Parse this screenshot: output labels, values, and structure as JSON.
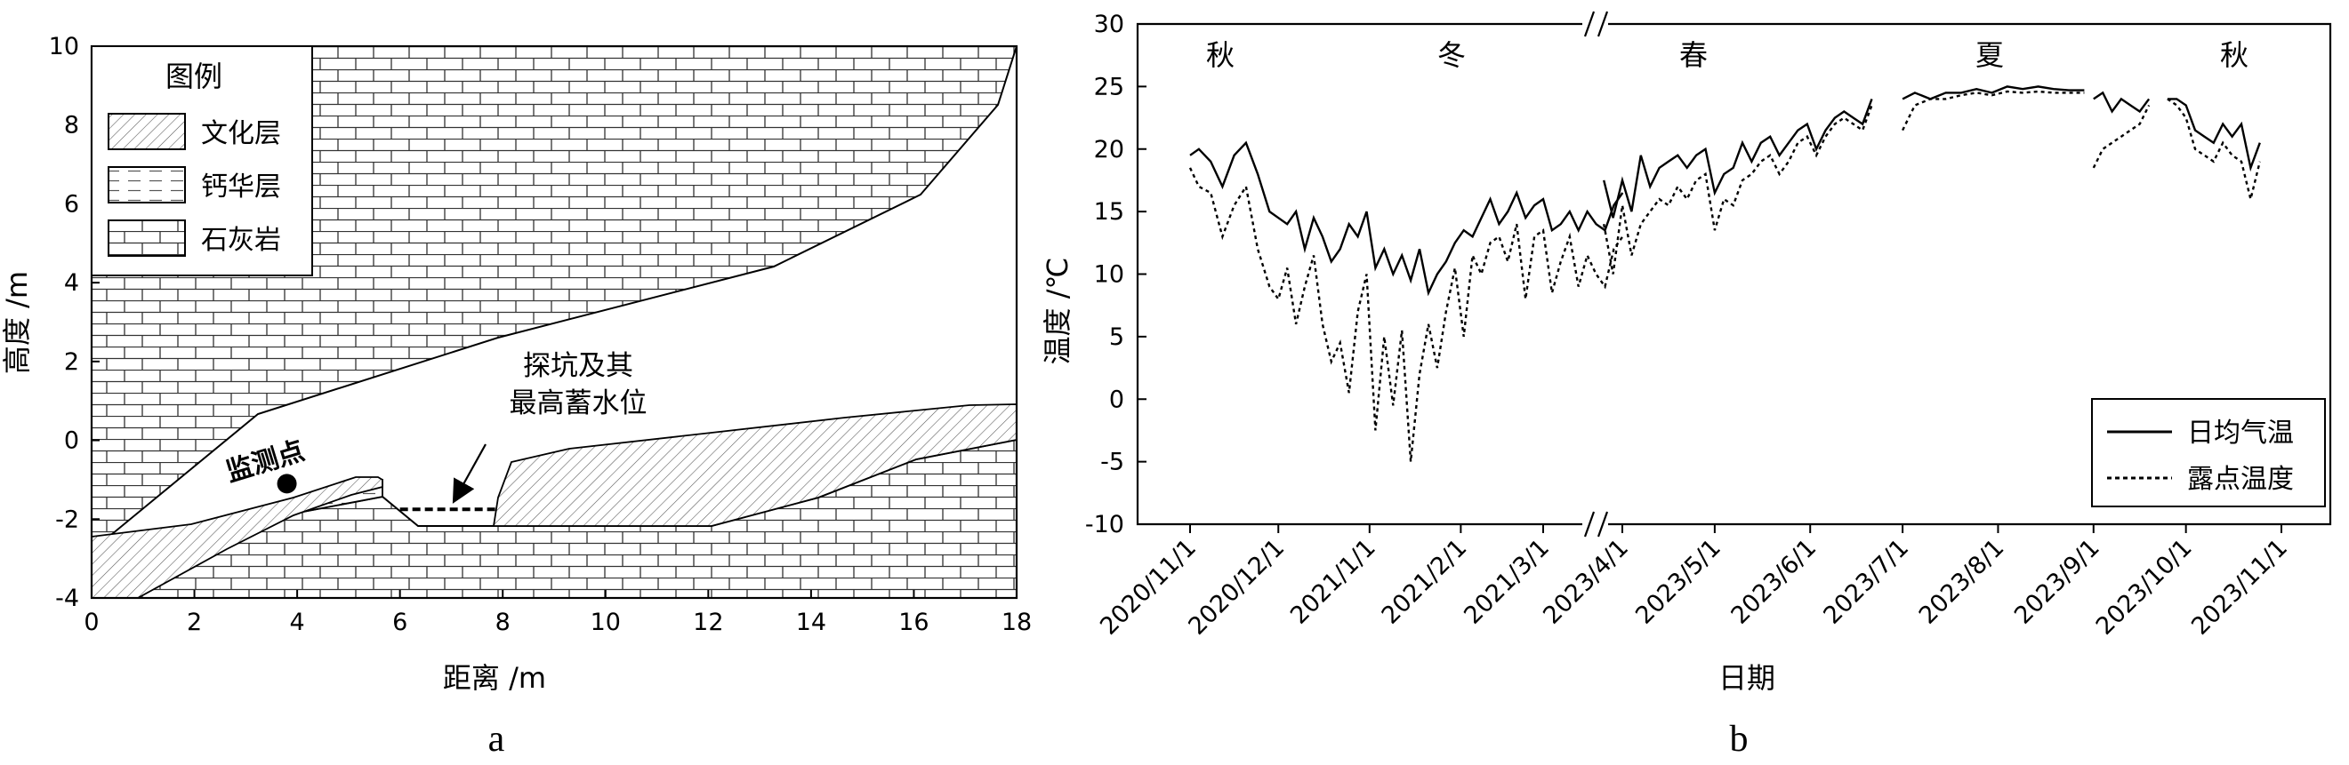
{
  "panel_a": {
    "label": "a",
    "xlabel": "距离 /m",
    "ylabel": "高度 /m",
    "x_ticks": [
      "0",
      "2",
      "4",
      "6",
      "8",
      "10",
      "12",
      "14",
      "16",
      "18"
    ],
    "y_ticks": [
      "-4",
      "-2",
      "0",
      "2",
      "4",
      "6",
      "8",
      "10"
    ],
    "xlim": [
      0,
      18
    ],
    "ylim": [
      -4,
      10
    ],
    "legend": {
      "title": "图例",
      "items": [
        {
          "label": "文化层",
          "pattern": "diagonal-hatch"
        },
        {
          "label": "钙华层",
          "pattern": "dashed-lines"
        },
        {
          "label": "石灰岩",
          "pattern": "brick"
        }
      ]
    },
    "annotations": {
      "monitor_point": "监测点",
      "pit_line1": "探坑及其",
      "pit_line2": "最高蓄水位"
    },
    "monitor_point_xy": [
      3.8,
      -1.1
    ],
    "pit_water_level": {
      "x": [
        6.0,
        7.9
      ],
      "y": -1.75
    }
  },
  "chart_data": {
    "type": "line",
    "label": "b",
    "xlabel": "日期",
    "ylabel": "温度 /℃",
    "ylim": [
      -10,
      30
    ],
    "y_ticks": [
      "-10",
      "-5",
      "0",
      "5",
      "10",
      "15",
      "20",
      "25",
      "30"
    ],
    "x_tick_labels": [
      "2020/11/1",
      "2020/12/1",
      "2021/1/1",
      "2021/2/1",
      "2021/3/1",
      "2023/4/1",
      "2023/5/1",
      "2023/6/1",
      "2023/7/1",
      "2023/8/1",
      "2023/9/1",
      "2023/10/1",
      "2023/11/1"
    ],
    "axis_break": "between 2021/3 and 2023/4",
    "seasons": [
      "秋",
      "冬",
      "春",
      "夏",
      "秋"
    ],
    "legend_position": "bottom-right",
    "series": [
      {
        "name": "日均气温",
        "style": "solid",
        "segments": [
          {
            "dates": [
              "2020-11-01",
              "2020-11-04",
              "2020-11-08",
              "2020-11-12",
              "2020-11-16",
              "2020-11-20",
              "2020-11-24",
              "2020-11-28",
              "2020-12-01",
              "2020-12-04",
              "2020-12-07",
              "2020-12-10",
              "2020-12-13",
              "2020-12-16",
              "2020-12-19",
              "2020-12-22",
              "2020-12-25",
              "2020-12-28",
              "2020-12-31",
              "2021-01-03",
              "2021-01-06",
              "2021-01-09",
              "2021-01-12",
              "2021-01-15",
              "2021-01-18",
              "2021-01-21",
              "2021-01-24",
              "2021-01-27",
              "2021-01-30",
              "2021-02-02",
              "2021-02-05",
              "2021-02-08",
              "2021-02-11",
              "2021-02-14",
              "2021-02-17",
              "2021-02-20",
              "2021-02-23",
              "2021-02-26",
              "2021-03-01",
              "2021-03-04",
              "2021-03-07",
              "2021-03-10",
              "2021-03-13",
              "2021-03-16",
              "2021-03-19",
              "2021-03-22",
              "2021-03-25",
              "2021-03-28"
            ],
            "values": [
              19.5,
              20.0,
              19.0,
              17.0,
              19.5,
              20.5,
              18.0,
              15.0,
              14.5,
              14.0,
              15.0,
              12.0,
              14.5,
              13.0,
              11.0,
              12.0,
              14.0,
              13.0,
              15.0,
              10.5,
              12.0,
              10.0,
              11.5,
              9.5,
              12.0,
              8.5,
              10.0,
              11.0,
              12.5,
              13.5,
              13.0,
              14.5,
              16.0,
              14.0,
              15.0,
              16.5,
              14.5,
              15.5,
              16.0,
              13.5,
              14.0,
              15.0,
              13.5,
              15.0,
              14.0,
              13.5,
              15.5,
              16.5
            ]
          },
          {
            "dates": [
              "2023-03-26",
              "2023-03-29",
              "2023-04-01",
              "2023-04-04",
              "2023-04-07",
              "2023-04-10",
              "2023-04-13",
              "2023-04-16",
              "2023-04-19",
              "2023-04-22",
              "2023-04-25",
              "2023-04-28",
              "2023-05-01",
              "2023-05-04",
              "2023-05-07",
              "2023-05-10",
              "2023-05-13",
              "2023-05-16",
              "2023-05-19",
              "2023-05-22",
              "2023-05-25",
              "2023-05-28",
              "2023-05-31",
              "2023-06-03",
              "2023-06-06",
              "2023-06-09",
              "2023-06-12",
              "2023-06-15",
              "2023-06-18",
              "2023-06-21"
            ],
            "values": [
              17.5,
              14.5,
              17.5,
              15.0,
              19.5,
              17.0,
              18.5,
              19.0,
              19.5,
              18.5,
              19.5,
              20.0,
              16.5,
              18.0,
              18.5,
              20.5,
              19.0,
              20.5,
              21.0,
              19.5,
              20.5,
              21.5,
              22.0,
              20.0,
              21.5,
              22.5,
              23.0,
              22.5,
              22.0,
              24.0
            ]
          },
          {
            "dates": [
              "2023-07-01",
              "2023-07-05",
              "2023-07-10",
              "2023-07-15",
              "2023-07-20",
              "2023-07-25",
              "2023-07-30",
              "2023-08-04",
              "2023-08-09",
              "2023-08-14",
              "2023-08-19",
              "2023-08-24",
              "2023-08-29"
            ],
            "values": [
              24.0,
              24.5,
              24.0,
              24.5,
              24.5,
              24.8,
              24.5,
              25.0,
              24.8,
              25.0,
              24.8,
              24.7,
              24.7
            ]
          },
          {
            "dates": [
              "2023-09-01",
              "2023-09-04",
              "2023-09-07",
              "2023-09-10",
              "2023-09-13",
              "2023-09-16",
              "2023-09-19"
            ],
            "values": [
              24.0,
              24.5,
              23.0,
              24.0,
              23.5,
              23.0,
              24.0
            ]
          },
          {
            "dates": [
              "2023-09-25",
              "2023-09-28",
              "2023-10-01",
              "2023-10-04",
              "2023-10-07",
              "2023-10-10",
              "2023-10-13",
              "2023-10-16",
              "2023-10-19",
              "2023-10-22",
              "2023-10-25"
            ],
            "values": [
              24.0,
              24.0,
              23.5,
              21.5,
              21.0,
              20.5,
              22.0,
              21.0,
              22.0,
              18.5,
              20.5
            ]
          }
        ]
      },
      {
        "name": "露点温度",
        "style": "dotted",
        "segments": [
          {
            "dates": [
              "2020-11-01",
              "2020-11-04",
              "2020-11-08",
              "2020-11-12",
              "2020-11-16",
              "2020-11-20",
              "2020-11-24",
              "2020-11-28",
              "2020-12-01",
              "2020-12-04",
              "2020-12-07",
              "2020-12-10",
              "2020-12-13",
              "2020-12-16",
              "2020-12-19",
              "2020-12-22",
              "2020-12-25",
              "2020-12-28",
              "2020-12-31",
              "2021-01-03",
              "2021-01-06",
              "2021-01-09",
              "2021-01-12",
              "2021-01-15",
              "2021-01-18",
              "2021-01-21",
              "2021-01-24",
              "2021-01-27",
              "2021-01-30",
              "2021-02-02",
              "2021-02-05",
              "2021-02-08",
              "2021-02-11",
              "2021-02-14",
              "2021-02-17",
              "2021-02-20",
              "2021-02-23",
              "2021-02-26",
              "2021-03-01",
              "2021-03-04",
              "2021-03-07",
              "2021-03-10",
              "2021-03-13",
              "2021-03-16",
              "2021-03-19",
              "2021-03-22",
              "2021-03-25",
              "2021-03-28"
            ],
            "values": [
              18.5,
              17.0,
              16.5,
              13.0,
              15.5,
              17.0,
              12.0,
              9.0,
              8.0,
              10.5,
              6.0,
              9.0,
              11.5,
              6.0,
              3.0,
              4.5,
              0.5,
              7.0,
              10.0,
              -2.5,
              5.0,
              -0.5,
              5.5,
              -5.0,
              2.0,
              6.0,
              2.5,
              7.0,
              10.5,
              5.0,
              11.5,
              10.0,
              12.5,
              13.0,
              11.0,
              14.0,
              8.0,
              13.0,
              13.5,
              8.5,
              11.0,
              13.0,
              9.0,
              11.5,
              10.0,
              9.0,
              12.0,
              13.0
            ]
          },
          {
            "dates": [
              "2023-03-26",
              "2023-03-29",
              "2023-04-01",
              "2023-04-04",
              "2023-04-07",
              "2023-04-10",
              "2023-04-13",
              "2023-04-16",
              "2023-04-19",
              "2023-04-22",
              "2023-04-25",
              "2023-04-28",
              "2023-05-01",
              "2023-05-04",
              "2023-05-07",
              "2023-05-10",
              "2023-05-13",
              "2023-05-16",
              "2023-05-19",
              "2023-05-22",
              "2023-05-25",
              "2023-05-28",
              "2023-05-31",
              "2023-06-03",
              "2023-06-06",
              "2023-06-09",
              "2023-06-12",
              "2023-06-15",
              "2023-06-18",
              "2023-06-21"
            ],
            "values": [
              14.0,
              10.0,
              15.5,
              11.5,
              14.0,
              15.0,
              16.0,
              15.5,
              17.0,
              16.0,
              17.5,
              18.0,
              13.5,
              16.0,
              15.5,
              17.5,
              18.0,
              19.0,
              19.5,
              18.0,
              19.0,
              20.5,
              21.0,
              19.5,
              21.0,
              22.0,
              22.5,
              22.0,
              21.5,
              23.5
            ]
          },
          {
            "dates": [
              "2023-07-01",
              "2023-07-05",
              "2023-07-10",
              "2023-07-15",
              "2023-07-20",
              "2023-07-25",
              "2023-07-30",
              "2023-08-04",
              "2023-08-09",
              "2023-08-14",
              "2023-08-19",
              "2023-08-24",
              "2023-08-29"
            ],
            "values": [
              21.5,
              23.5,
              24.0,
              24.0,
              24.3,
              24.5,
              24.3,
              24.6,
              24.5,
              24.6,
              24.5,
              24.5,
              24.5
            ]
          },
          {
            "dates": [
              "2023-09-01",
              "2023-09-04",
              "2023-09-07",
              "2023-09-10",
              "2023-09-13",
              "2023-09-16",
              "2023-09-19"
            ],
            "values": [
              18.5,
              20.0,
              20.5,
              21.0,
              21.5,
              22.0,
              23.5
            ]
          },
          {
            "dates": [
              "2023-09-25",
              "2023-09-28",
              "2023-10-01",
              "2023-10-04",
              "2023-10-07",
              "2023-10-10",
              "2023-10-13",
              "2023-10-16",
              "2023-10-19",
              "2023-10-22",
              "2023-10-25"
            ],
            "values": [
              24.0,
              23.5,
              22.5,
              20.0,
              19.5,
              19.0,
              20.5,
              19.5,
              19.0,
              16.0,
              19.0
            ]
          }
        ]
      }
    ]
  }
}
